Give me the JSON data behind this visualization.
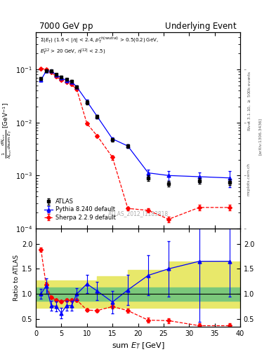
{
  "title_left": "7000 GeV pp",
  "title_right": "Underlying Event",
  "annotation": "ATLAS_2012_I1183818",
  "ylabel_main": "$\\frac{1}{N_{evt}}\\frac{d N_{evt}}{d\\mathrm{sum}\\ E_T}$ [GeV$^{-1}$]",
  "ylabel_ratio": "Ratio to ATLAS",
  "xlabel": "sum $E_T$ [GeV]",
  "atlas_x": [
    1,
    2,
    3,
    4,
    5,
    6,
    7,
    8,
    10,
    12,
    15,
    18,
    22,
    26,
    32,
    38
  ],
  "atlas_y": [
    0.068,
    0.093,
    0.093,
    0.08,
    0.072,
    0.065,
    0.06,
    0.047,
    0.024,
    0.013,
    0.0047,
    0.0036,
    0.0009,
    0.0007,
    0.0008,
    0.00075
  ],
  "atlas_ye": [
    0.004,
    0.004,
    0.004,
    0.004,
    0.003,
    0.003,
    0.003,
    0.003,
    0.002,
    0.001,
    0.0004,
    0.0003,
    0.0001,
    8e-05,
    0.0001,
    0.0001
  ],
  "pythia_x": [
    1,
    2,
    3,
    4,
    5,
    6,
    7,
    8,
    10,
    12,
    15,
    18,
    22,
    26,
    32,
    38
  ],
  "pythia_y": [
    0.063,
    0.093,
    0.093,
    0.079,
    0.069,
    0.062,
    0.058,
    0.047,
    0.025,
    0.013,
    0.0049,
    0.0036,
    0.00112,
    0.001,
    0.00095,
    0.0009
  ],
  "pythia_ye": [
    0.004,
    0.004,
    0.004,
    0.003,
    0.003,
    0.003,
    0.003,
    0.002,
    0.002,
    0.001,
    0.0004,
    0.0003,
    0.00015,
    0.0002,
    0.0002,
    0.0003
  ],
  "sherpa_x": [
    1,
    2,
    3,
    4,
    5,
    6,
    7,
    8,
    10,
    12,
    15,
    18,
    22,
    26,
    32,
    38
  ],
  "sherpa_y": [
    0.103,
    0.101,
    0.088,
    0.073,
    0.063,
    0.058,
    0.052,
    0.042,
    0.0095,
    0.0056,
    0.0022,
    0.00024,
    0.00022,
    0.00015,
    0.00025,
    0.00025
  ],
  "sherpa_ye": [
    0.004,
    0.003,
    0.003,
    0.003,
    0.002,
    0.002,
    0.002,
    0.002,
    0.0005,
    0.0003,
    0.0002,
    2e-05,
    2e-05,
    2e-05,
    3e-05,
    3e-05
  ],
  "ratio_pythia_x": [
    1,
    2,
    3,
    4,
    5,
    6,
    7,
    8,
    10,
    12,
    15,
    18,
    22,
    26,
    32,
    38
  ],
  "ratio_pythia_y": [
    1.0,
    1.16,
    0.77,
    0.75,
    0.62,
    0.77,
    0.77,
    1.0,
    1.2,
    1.06,
    0.84,
    1.08,
    1.37,
    1.5,
    1.65,
    1.65
  ],
  "ratio_pythia_e": [
    0.1,
    0.15,
    0.1,
    0.1,
    0.1,
    0.1,
    0.1,
    0.12,
    0.18,
    0.18,
    0.22,
    0.3,
    0.4,
    0.55,
    1.2,
    0.7
  ],
  "ratio_sherpa_x": [
    1,
    2,
    3,
    4,
    5,
    6,
    7,
    8,
    10,
    12,
    15,
    18,
    22,
    26,
    32,
    38
  ],
  "ratio_sherpa_y": [
    1.88,
    1.18,
    0.93,
    0.88,
    0.85,
    0.88,
    0.88,
    0.88,
    0.68,
    0.67,
    0.75,
    0.67,
    0.48,
    0.47,
    0.37,
    0.37
  ],
  "ratio_sherpa_e": [
    0.04,
    0.04,
    0.03,
    0.03,
    0.03,
    0.03,
    0.03,
    0.03,
    0.03,
    0.03,
    0.04,
    0.04,
    0.05,
    0.05,
    0.05,
    0.05
  ],
  "band_x": [
    0,
    2,
    4,
    6,
    8,
    12,
    18,
    26,
    40
  ],
  "green_lo": [
    0.87,
    0.87,
    0.87,
    0.87,
    0.87,
    0.87,
    0.87,
    0.87,
    0.87
  ],
  "green_hi": [
    1.13,
    1.13,
    1.13,
    1.13,
    1.13,
    1.13,
    1.13,
    1.13,
    1.13
  ],
  "yellow_lo": [
    0.73,
    0.73,
    0.73,
    0.73,
    0.73,
    0.73,
    0.73,
    0.73,
    0.73
  ],
  "yellow_hi": [
    1.27,
    1.27,
    1.27,
    1.27,
    1.27,
    1.35,
    1.48,
    1.65,
    1.65
  ],
  "xlim": [
    0,
    40
  ],
  "ylim_main": [
    0.0001,
    0.5
  ],
  "ylim_ratio": [
    0.35,
    2.3
  ],
  "yticks_ratio": [
    0.5,
    1.0,
    1.5,
    2.0
  ],
  "atlas_color": "#000000",
  "pythia_color": "#0000ff",
  "sherpa_color": "#ff0000",
  "green_color": "#7bc87b",
  "yellow_color": "#e8e86a"
}
